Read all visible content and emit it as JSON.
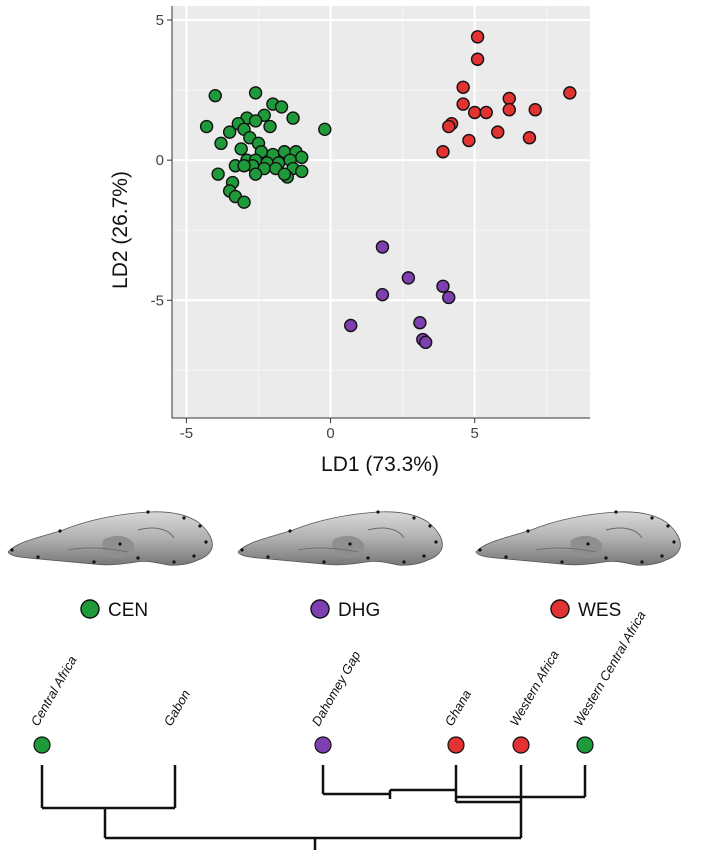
{
  "chart_data": {
    "type": "scatter",
    "xlabel": "LD1 (73.3%)",
    "ylabel": "LD2 (26.7%)",
    "xlim": [
      -5.5,
      9.0
    ],
    "ylim": [
      -9.2,
      5.5
    ],
    "x_ticks": [
      -5,
      0,
      5
    ],
    "y_ticks": [
      -5,
      0,
      5
    ],
    "grid": true,
    "series": [
      {
        "name": "CEN",
        "color": "#1f9a3a",
        "points": [
          [
            -4.0,
            2.3
          ],
          [
            -2.6,
            2.4
          ],
          [
            -2.0,
            2.0
          ],
          [
            -1.7,
            1.9
          ],
          [
            -2.3,
            1.6
          ],
          [
            -2.9,
            1.5
          ],
          [
            -2.6,
            1.4
          ],
          [
            -1.3,
            1.5
          ],
          [
            -3.2,
            1.3
          ],
          [
            -2.1,
            1.2
          ],
          [
            -4.3,
            1.2
          ],
          [
            -3.5,
            1.0
          ],
          [
            -3.0,
            1.1
          ],
          [
            -0.2,
            1.1
          ],
          [
            -3.8,
            0.6
          ],
          [
            -2.8,
            0.8
          ],
          [
            -2.5,
            0.6
          ],
          [
            -3.1,
            0.4
          ],
          [
            -2.4,
            0.3
          ],
          [
            -2.0,
            0.2
          ],
          [
            -1.6,
            0.3
          ],
          [
            -1.2,
            0.3
          ],
          [
            -1.0,
            0.1
          ],
          [
            -2.9,
            0.0
          ],
          [
            -2.6,
            0.0
          ],
          [
            -2.2,
            -0.1
          ],
          [
            -1.8,
            -0.1
          ],
          [
            -1.4,
            0.0
          ],
          [
            -3.3,
            -0.2
          ],
          [
            -2.7,
            -0.2
          ],
          [
            -2.3,
            -0.3
          ],
          [
            -1.9,
            -0.3
          ],
          [
            -1.3,
            -0.3
          ],
          [
            -1.0,
            -0.4
          ],
          [
            -3.0,
            -0.2
          ],
          [
            -2.6,
            -0.5
          ],
          [
            -1.5,
            -0.6
          ],
          [
            -3.9,
            -0.5
          ],
          [
            -3.4,
            -0.8
          ],
          [
            -3.5,
            -1.1
          ],
          [
            -3.3,
            -1.3
          ],
          [
            -3.0,
            -1.5
          ],
          [
            -1.6,
            -0.5
          ]
        ]
      },
      {
        "name": "DHG",
        "color": "#7e3fb0",
        "points": [
          [
            1.8,
            -3.1
          ],
          [
            2.7,
            -4.2
          ],
          [
            3.9,
            -4.5
          ],
          [
            1.8,
            -4.8
          ],
          [
            4.1,
            -4.9
          ],
          [
            0.7,
            -5.9
          ],
          [
            3.1,
            -5.8
          ],
          [
            3.2,
            -6.4
          ],
          [
            3.3,
            -6.5
          ]
        ]
      },
      {
        "name": "WES",
        "color": "#e23232",
        "points": [
          [
            5.1,
            4.4
          ],
          [
            5.1,
            3.6
          ],
          [
            4.6,
            2.6
          ],
          [
            8.3,
            2.4
          ],
          [
            6.2,
            2.2
          ],
          [
            4.6,
            2.0
          ],
          [
            5.0,
            1.7
          ],
          [
            5.4,
            1.7
          ],
          [
            6.2,
            1.8
          ],
          [
            7.1,
            1.8
          ],
          [
            4.2,
            1.3
          ],
          [
            4.1,
            1.2
          ],
          [
            5.8,
            1.0
          ],
          [
            6.9,
            0.8
          ],
          [
            4.8,
            0.7
          ],
          [
            3.9,
            0.3
          ]
        ]
      }
    ]
  },
  "tree": {
    "leaves": [
      {
        "label": "Central Africa",
        "color": "#1f9a3a"
      },
      {
        "label": "Gabon",
        "color": null
      },
      {
        "label": "Dahomey Gap",
        "color": "#7e3fb0"
      },
      {
        "label": "Ghana",
        "color": "#e23232"
      },
      {
        "label": "Western Africa",
        "color": "#e23232"
      },
      {
        "label": "Western Central Africa",
        "color": "#1f9a3a"
      }
    ]
  }
}
